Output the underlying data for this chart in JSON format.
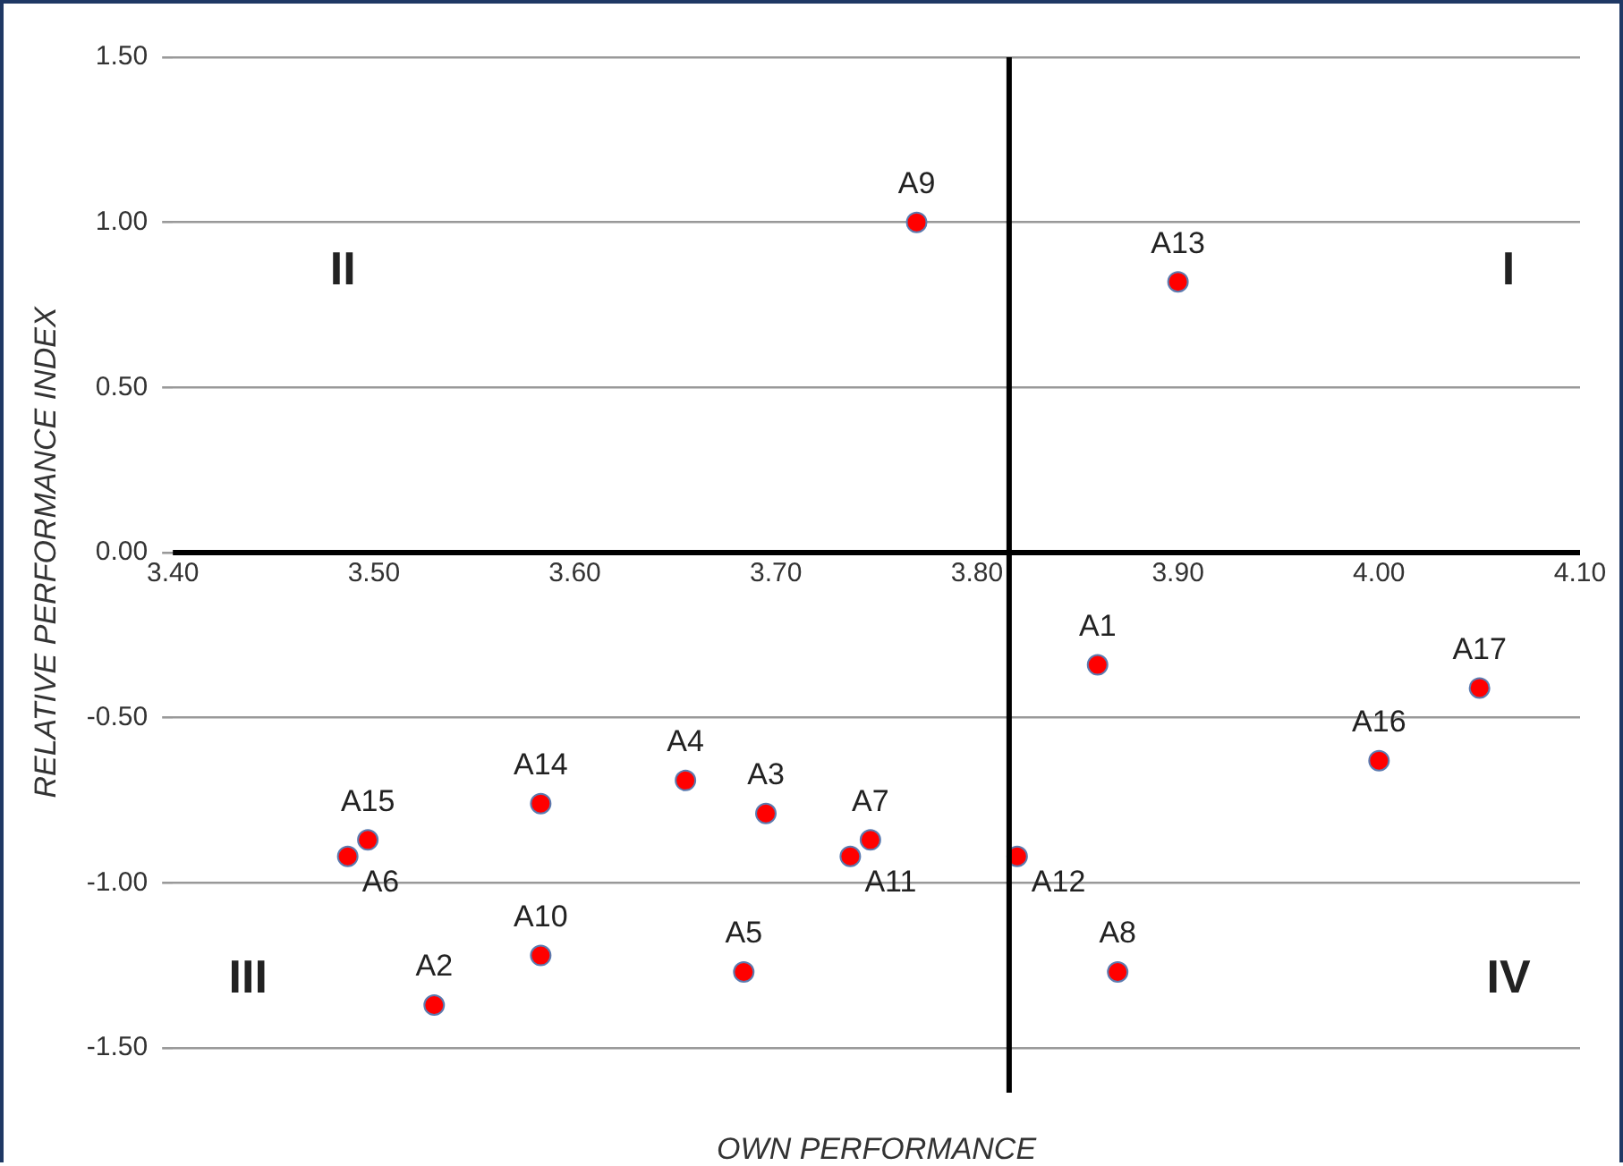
{
  "chart_data": {
    "type": "scatter",
    "xlabel": "OWN PERFORMANCE",
    "ylabel": "RELATIVE PERFORMANCE INDEX",
    "xlim": [
      3.4,
      4.1
    ],
    "xticks": [
      {
        "value": 3.4,
        "label": "3.40"
      },
      {
        "value": 3.5,
        "label": "3.50"
      },
      {
        "value": 3.6,
        "label": "3.60"
      },
      {
        "value": 3.7,
        "label": "3.70"
      },
      {
        "value": 3.8,
        "label": "3.80"
      },
      {
        "value": 3.9,
        "label": "3.90"
      },
      {
        "value": 4.0,
        "label": "4.00"
      },
      {
        "value": 4.1,
        "label": "4.10"
      }
    ],
    "ylim": [
      -1.5,
      1.5
    ],
    "yticks": [
      {
        "value": -1.5,
        "label": "-1.50"
      },
      {
        "value": -1.0,
        "label": "-1.00"
      },
      {
        "value": -0.5,
        "label": "-0.50"
      },
      {
        "value": 0,
        "label": "0.00"
      },
      {
        "value": 0.5,
        "label": "0.50"
      },
      {
        "value": 1.0,
        "label": "1.00"
      },
      {
        "value": 1.5,
        "label": "1.50"
      }
    ],
    "grid": "y",
    "legend": false,
    "marker": "circle",
    "series": [
      {
        "color": "#ff0000",
        "x": [
          3.86,
          3.53,
          3.695,
          3.655,
          3.684,
          3.487,
          3.747,
          3.87,
          3.77,
          3.583,
          3.737,
          3.82,
          3.9,
          3.583,
          3.497,
          4.0,
          4.05
        ],
        "values": [
          -0.34,
          -1.37,
          -0.79,
          -0.69,
          -1.27,
          -0.92,
          -0.87,
          -1.27,
          1.0,
          -1.22,
          -0.92,
          -0.92,
          0.82,
          -0.76,
          -0.87,
          -0.63,
          -0.41
        ]
      }
    ],
    "ref_lines": [
      {
        "axis": "x",
        "value": 3.816,
        "color": "#000000"
      }
    ],
    "annotations": [
      {
        "text": "A1",
        "x": 3.86,
        "y": -0.34
      },
      {
        "text": "A2",
        "x": 3.53,
        "y": -1.37
      },
      {
        "text": "A3",
        "x": 3.695,
        "y": -0.79
      },
      {
        "text": "A4",
        "x": 3.655,
        "y": -0.69
      },
      {
        "text": "A5",
        "x": 3.684,
        "y": -1.27
      },
      {
        "text": "A6",
        "x": 3.487,
        "y": -0.92
      },
      {
        "text": "A7",
        "x": 3.747,
        "y": -0.87
      },
      {
        "text": "A8",
        "x": 3.87,
        "y": -1.27
      },
      {
        "text": "A9",
        "x": 3.77,
        "y": 1.0
      },
      {
        "text": "A10",
        "x": 3.583,
        "y": -1.22
      },
      {
        "text": "A11",
        "x": 3.737,
        "y": -0.92
      },
      {
        "text": "A12",
        "x": 3.82,
        "y": -0.92
      },
      {
        "text": "A13",
        "x": 3.9,
        "y": 0.82
      },
      {
        "text": "A14",
        "x": 3.583,
        "y": -0.76
      },
      {
        "text": "A15",
        "x": 3.497,
        "y": -0.87
      },
      {
        "text": "A16",
        "x": 4.0,
        "y": -0.63
      },
      {
        "text": "A17",
        "x": 4.05,
        "y": -0.41
      },
      "I",
      "II",
      "III",
      "IV"
    ]
  }
}
